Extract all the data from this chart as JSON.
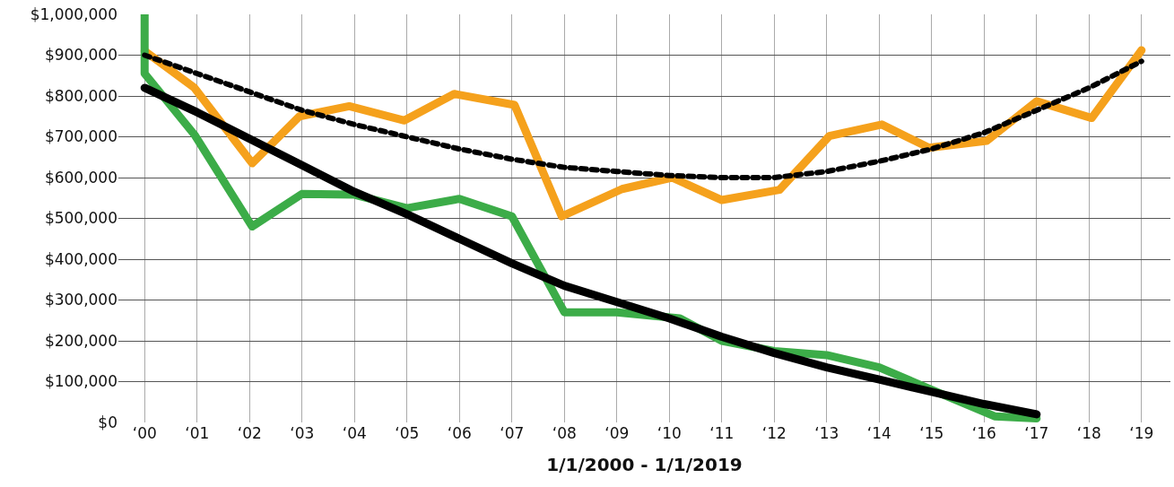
{
  "chart_data": {
    "type": "line",
    "xlabel": "1/1/2000 - 1/1/2019",
    "xlim": [
      -0.5,
      19.55
    ],
    "ylim": [
      0,
      1000000
    ],
    "xticks": [
      {
        "value": 0,
        "label": "‘00"
      },
      {
        "value": 1,
        "label": "‘01"
      },
      {
        "value": 2,
        "label": "‘02"
      },
      {
        "value": 3,
        "label": "‘03"
      },
      {
        "value": 4,
        "label": "‘04"
      },
      {
        "value": 5,
        "label": "‘05"
      },
      {
        "value": 6,
        "label": "‘06"
      },
      {
        "value": 7,
        "label": "‘07"
      },
      {
        "value": 8,
        "label": "‘08"
      },
      {
        "value": 9,
        "label": "‘09"
      },
      {
        "value": 10,
        "label": "‘10"
      },
      {
        "value": 11,
        "label": "‘11"
      },
      {
        "value": 12,
        "label": "‘12"
      },
      {
        "value": 13,
        "label": "‘13"
      },
      {
        "value": 14,
        "label": "‘14"
      },
      {
        "value": 15,
        "label": "‘15"
      },
      {
        "value": 16,
        "label": "‘16"
      },
      {
        "value": 17,
        "label": "‘17"
      },
      {
        "value": 18,
        "label": "‘18"
      },
      {
        "value": 19,
        "label": "‘19"
      }
    ],
    "yticks": [
      {
        "value": 0,
        "label": "$0"
      },
      {
        "value": 100000,
        "label": "$100,000"
      },
      {
        "value": 200000,
        "label": "$200,000"
      },
      {
        "value": 300000,
        "label": "$300,000"
      },
      {
        "value": 400000,
        "label": "$400,000"
      },
      {
        "value": 500000,
        "label": "$500,000"
      },
      {
        "value": 600000,
        "label": "$600,000"
      },
      {
        "value": 700000,
        "label": "$700,000"
      },
      {
        "value": 800000,
        "label": "$800,000"
      },
      {
        "value": 900000,
        "label": "$900,000"
      },
      {
        "value": 1000000,
        "label": "$1,000,000"
      }
    ],
    "grid": true,
    "marker": "none",
    "series": [
      {
        "color": "#f5a11c",
        "line_style": "solid",
        "x": [
          0,
          0.95,
          2.05,
          2.95,
          3.9,
          4.95,
          5.9,
          7.05,
          7.95,
          9.1,
          10.05,
          11.0,
          12.1,
          13.05,
          14.05,
          14.95,
          16.05,
          17.0,
          18.05,
          19.0
        ],
        "values": [
          910000,
          820000,
          635000,
          750000,
          775000,
          740000,
          805000,
          778000,
          505000,
          572000,
          600000,
          545000,
          570000,
          702000,
          730000,
          673000,
          690000,
          787000,
          746000,
          912000
        ]
      },
      {
        "color": "#3cac48",
        "line_style": "solid",
        "x": [
          0,
          0,
          0.95,
          2.05,
          3.0,
          4.0,
          5.0,
          6.0,
          7.0,
          8.0,
          9.0,
          10.2,
          11.0,
          12.0,
          13.0,
          14.0,
          15.0,
          16.2,
          17.0
        ],
        "values": [
          1000000,
          855000,
          705000,
          480000,
          560000,
          558000,
          525000,
          548000,
          505000,
          270000,
          270000,
          255000,
          200000,
          175000,
          165000,
          135000,
          80000,
          15000,
          10000
        ]
      },
      {
        "color": "#000000",
        "line_style": "solid",
        "x": [
          0,
          1,
          2,
          3,
          4,
          5,
          6,
          7,
          8,
          9,
          10,
          11,
          12,
          13,
          14,
          15,
          16,
          17
        ],
        "values": [
          820000,
          760000,
          695000,
          630000,
          565000,
          510000,
          450000,
          390000,
          335000,
          295000,
          255000,
          210000,
          170000,
          135000,
          105000,
          75000,
          45000,
          20000
        ]
      },
      {
        "color": "#000000",
        "line_style": "dotted",
        "x": [
          0,
          1,
          2,
          3,
          4,
          5,
          6,
          7,
          8,
          9,
          10,
          11,
          12,
          13,
          14,
          15,
          16,
          17,
          18,
          19
        ],
        "values": [
          900000,
          855000,
          810000,
          765000,
          730000,
          700000,
          670000,
          645000,
          625000,
          615000,
          605000,
          600000,
          600000,
          615000,
          640000,
          670000,
          710000,
          765000,
          820000,
          885000
        ]
      }
    ]
  }
}
